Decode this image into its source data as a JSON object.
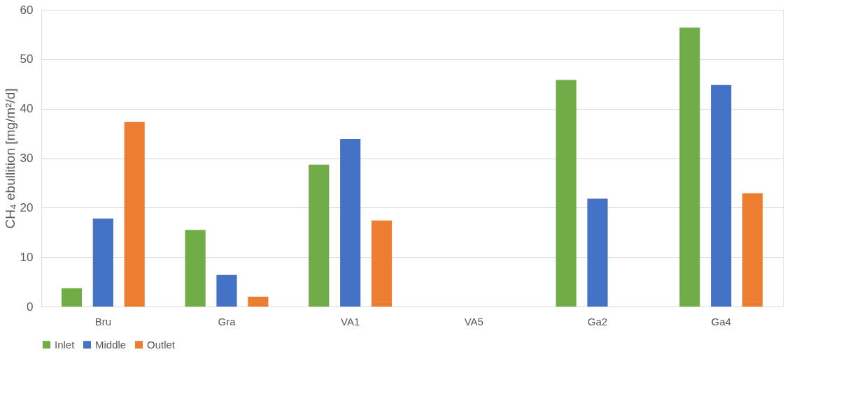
{
  "chart_data": {
    "type": "bar",
    "ylabel": "CH₄ ebullition [mg/m²/d]",
    "categories": [
      "Bru",
      "Gra",
      "VA1",
      "VA5",
      "Ga2",
      "Ga4"
    ],
    "series": [
      {
        "name": "Inlet",
        "color": "#70ad47",
        "values": [
          3.7,
          15.5,
          28.7,
          null,
          45.8,
          56.4
        ]
      },
      {
        "name": "Middle",
        "color": "#4472c4",
        "values": [
          17.8,
          6.4,
          33.9,
          null,
          21.8,
          44.8
        ]
      },
      {
        "name": "Outlet",
        "color": "#ed7d31",
        "values": [
          37.3,
          2.0,
          17.4,
          null,
          null,
          22.9
        ]
      }
    ],
    "ylim": [
      0,
      60
    ],
    "yticks": [
      0,
      10,
      20,
      30,
      40,
      50,
      60
    ],
    "grid": "y",
    "legend": "bottom"
  }
}
